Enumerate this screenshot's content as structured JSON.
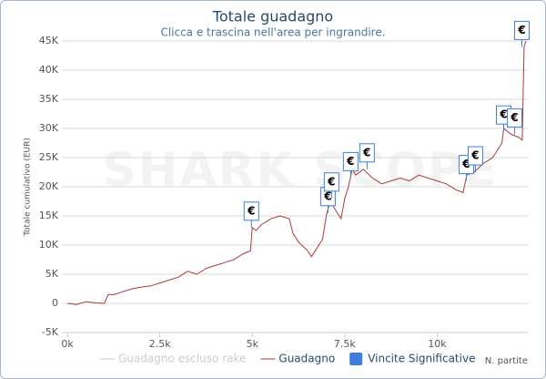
{
  "chart_data": {
    "type": "line",
    "title": "Totale guadagno",
    "subtitle": "Clicca e trascina nell'area per ingrandire.",
    "watermark": "SHARK SCOPE",
    "y_label": "Totale cumulativo (EUR)",
    "x_label": "N. partite",
    "xlim": [
      -150,
      12450
    ],
    "ylim": [
      -5000,
      45000
    ],
    "xticks": [
      {
        "value": 0,
        "label": "0k"
      },
      {
        "value": 2500,
        "label": "2.5k"
      },
      {
        "value": 5000,
        "label": "5k"
      },
      {
        "value": 7500,
        "label": "7.5k"
      },
      {
        "value": 10000,
        "label": "10k"
      }
    ],
    "yticks": [
      {
        "value": -5000,
        "label": "-5K"
      },
      0,
      {
        "value": 5000,
        "label": "5K"
      },
      {
        "value": 10000,
        "label": "10K"
      },
      {
        "value": 15000,
        "label": "15K"
      },
      {
        "value": 20000,
        "label": "20K"
      },
      {
        "value": 25000,
        "label": "25K"
      },
      {
        "value": 30000,
        "label": "30K"
      },
      {
        "value": 35000,
        "label": "35K"
      },
      {
        "value": 40000,
        "label": "40K"
      },
      {
        "value": 45000,
        "label": "45K"
      }
    ],
    "grid": true,
    "flag_text": "€",
    "series": [
      {
        "name": "Guadagno escluso rake",
        "color": "#c8c8c8",
        "visible": false
      },
      {
        "name": "Guadagno",
        "color": "#aa3b3b",
        "x": [
          0,
          250,
          500,
          750,
          1000,
          1100,
          1250,
          1500,
          1750,
          2000,
          2250,
          2500,
          2750,
          3000,
          3250,
          3500,
          3750,
          4000,
          4250,
          4500,
          4750,
          4950,
          5000,
          5100,
          5250,
          5500,
          5750,
          6000,
          6100,
          6250,
          6500,
          6600,
          6750,
          6900,
          7000,
          7100,
          7250,
          7400,
          7500,
          7600,
          7700,
          7800,
          7900,
          8000,
          8250,
          8500,
          8750,
          9000,
          9250,
          9500,
          9750,
          10000,
          10250,
          10500,
          10700,
          10800,
          11000,
          11250,
          11500,
          11750,
          11800,
          12000,
          12200,
          12300,
          12350,
          12400
        ],
        "values": [
          0,
          -200,
          300,
          100,
          0,
          1500,
          1500,
          2000,
          2500,
          2800,
          3000,
          3500,
          4000,
          4500,
          5500,
          5000,
          6000,
          6500,
          7000,
          7500,
          8500,
          9000,
          13000,
          12500,
          13500,
          14500,
          15000,
          14500,
          12000,
          10500,
          9000,
          8000,
          9500,
          11000,
          15000,
          17500,
          16000,
          14500,
          18000,
          20000,
          23000,
          22000,
          22500,
          23000,
          21500,
          20500,
          21000,
          21500,
          21000,
          22000,
          21500,
          21000,
          20500,
          19500,
          19000,
          22000,
          22500,
          24000,
          25000,
          27500,
          30000,
          29000,
          28500,
          28000,
          44000,
          45000
        ]
      },
      {
        "name": "Vincite Significative",
        "color": "#3d7fd8",
        "type": "flags",
        "x": [
          4975,
          7045,
          7143,
          7660,
          8103,
          10788,
          11034,
          11798,
          12094,
          12290
        ],
        "values": [
          13000,
          15500,
          18000,
          21500,
          23000,
          21000,
          22500,
          29500,
          29000,
          44000
        ]
      }
    ]
  }
}
